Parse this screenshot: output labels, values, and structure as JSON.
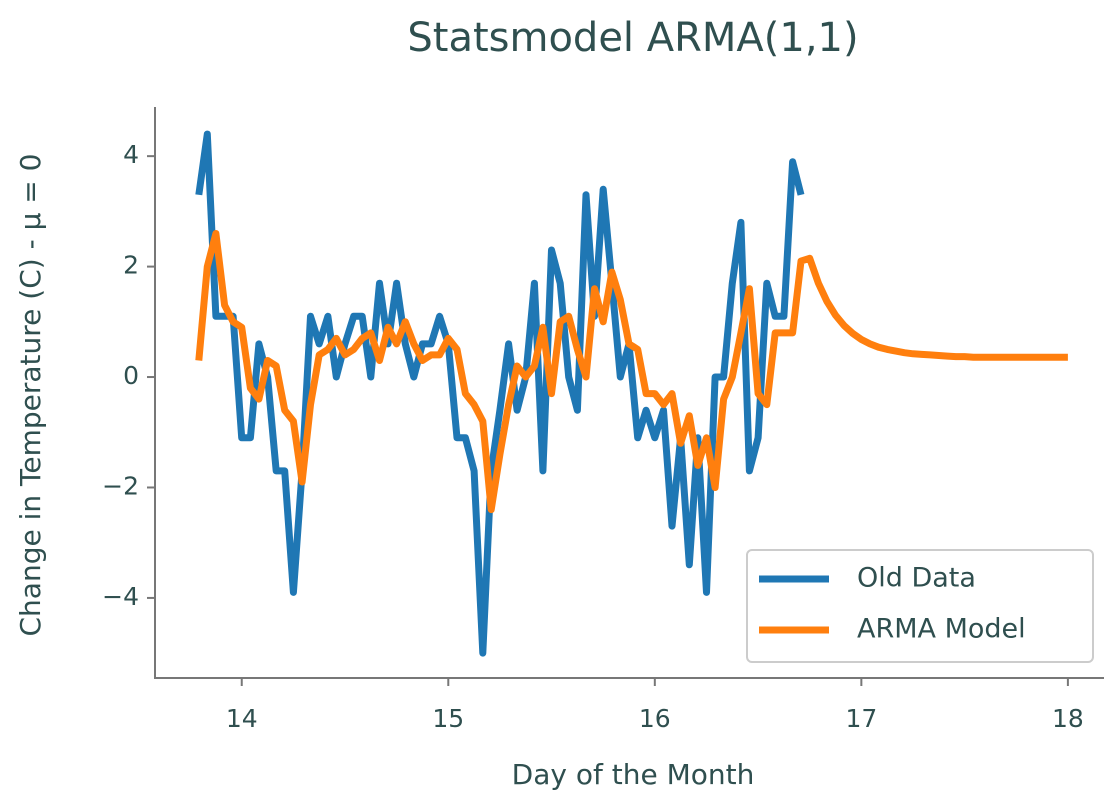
{
  "chart_data": {
    "type": "line",
    "title": "Statsmodel ARMA(1,1)",
    "x_label": "Day of the Month",
    "y_label": "Change in Temperature (C) - μ = 0",
    "x": [
      13.792,
      13.833,
      13.875,
      13.917,
      13.958,
      14,
      14.042,
      14.083,
      14.125,
      14.167,
      14.208,
      14.25,
      14.292,
      14.333,
      14.375,
      14.417,
      14.458,
      14.5,
      14.542,
      14.583,
      14.625,
      14.667,
      14.708,
      14.75,
      14.792,
      14.833,
      14.875,
      14.917,
      14.958,
      15,
      15.042,
      15.083,
      15.125,
      15.167,
      15.208,
      15.25,
      15.292,
      15.333,
      15.375,
      15.417,
      15.458,
      15.5,
      15.542,
      15.583,
      15.625,
      15.667,
      15.708,
      15.75,
      15.792,
      15.833,
      15.875,
      15.917,
      15.958,
      16,
      16.042,
      16.083,
      16.125,
      16.167,
      16.208,
      16.25,
      16.292,
      16.333,
      16.375,
      16.417,
      16.458,
      16.5,
      16.542,
      16.583,
      16.625,
      16.667,
      16.708,
      16.75,
      16.792,
      16.833,
      16.875,
      16.917,
      16.958,
      17,
      17.042,
      17.083,
      17.125,
      17.167,
      17.208,
      17.25,
      17.292,
      17.333,
      17.375,
      17.417,
      17.458,
      17.5,
      17.542,
      17.583,
      17.625,
      17.667,
      17.708,
      17.75,
      17.792,
      17.833,
      17.875,
      17.917,
      17.958,
      18
    ],
    "series": [
      {
        "name": "Old Data",
        "color": "#1f77b4",
        "values": [
          3.3,
          4.4,
          1.1,
          1.1,
          1.1,
          -1.1,
          -1.1,
          0.6,
          0.0,
          -1.7,
          -1.7,
          -3.9,
          -1.7,
          1.1,
          0.6,
          1.1,
          0.0,
          0.6,
          1.1,
          1.1,
          0.0,
          1.7,
          0.6,
          1.7,
          0.6,
          0.0,
          0.6,
          0.6,
          1.1,
          0.6,
          -1.1,
          -1.1,
          -1.7,
          -5.0,
          -1.7,
          -0.6,
          0.6,
          -0.6,
          0.0,
          1.7,
          -1.7,
          2.3,
          1.7,
          0.0,
          -0.6,
          3.3,
          1.1,
          3.4,
          1.7,
          0.0,
          0.6,
          -1.1,
          -0.6,
          -1.1,
          -0.6,
          -2.7,
          -1.1,
          -3.4,
          -1.1,
          -3.9,
          0.0,
          0.0,
          1.7,
          2.8,
          -1.7,
          -1.1,
          1.7,
          1.1,
          1.1,
          3.9,
          3.3,
          null,
          null,
          null,
          null,
          null,
          null,
          null,
          null,
          null,
          null,
          null,
          null,
          null,
          null,
          null,
          null,
          null,
          null,
          null,
          null,
          null,
          null,
          null,
          null,
          null,
          null,
          null,
          null,
          null,
          null,
          null
        ]
      },
      {
        "name": "ARMA Model",
        "color": "#ff7f0e",
        "values": [
          0.3,
          2.0,
          2.6,
          1.3,
          1.0,
          0.9,
          -0.2,
          -0.4,
          0.3,
          0.2,
          -0.6,
          -0.8,
          -1.9,
          -0.5,
          0.4,
          0.5,
          0.7,
          0.4,
          0.5,
          0.7,
          0.8,
          0.3,
          0.9,
          0.6,
          1.0,
          0.6,
          0.3,
          0.4,
          0.4,
          0.7,
          0.5,
          -0.3,
          -0.5,
          -0.8,
          -2.4,
          -1.4,
          -0.5,
          0.2,
          0.0,
          0.2,
          0.9,
          -0.3,
          1.0,
          1.1,
          0.5,
          0.0,
          1.6,
          1.0,
          1.9,
          1.4,
          0.6,
          0.5,
          -0.3,
          -0.3,
          -0.5,
          -0.3,
          -1.2,
          -0.7,
          -1.6,
          -1.1,
          -2.0,
          -0.4,
          0.0,
          0.8,
          1.6,
          -0.3,
          -0.5,
          0.8,
          0.8,
          0.8,
          2.1,
          2.15,
          1.7,
          1.37,
          1.12,
          0.93,
          0.79,
          0.68,
          0.6,
          0.54,
          0.5,
          0.47,
          0.44,
          0.42,
          0.41,
          0.4,
          0.39,
          0.38,
          0.37,
          0.37,
          0.36,
          0.36,
          0.36,
          0.36,
          0.36,
          0.36,
          0.36,
          0.36,
          0.36,
          0.36,
          0.36,
          0.36
        ]
      }
    ],
    "xlim": [
      13.58,
      18.17
    ],
    "ylim": [
      -5.45,
      4.89
    ],
    "xticks": [
      14,
      15,
      16,
      17,
      18
    ],
    "yticks": [
      {
        "value": -4,
        "label": "−4"
      },
      {
        "value": -2,
        "label": "−2"
      },
      0,
      2,
      4
    ],
    "legend": "lower right",
    "grid": false
  }
}
